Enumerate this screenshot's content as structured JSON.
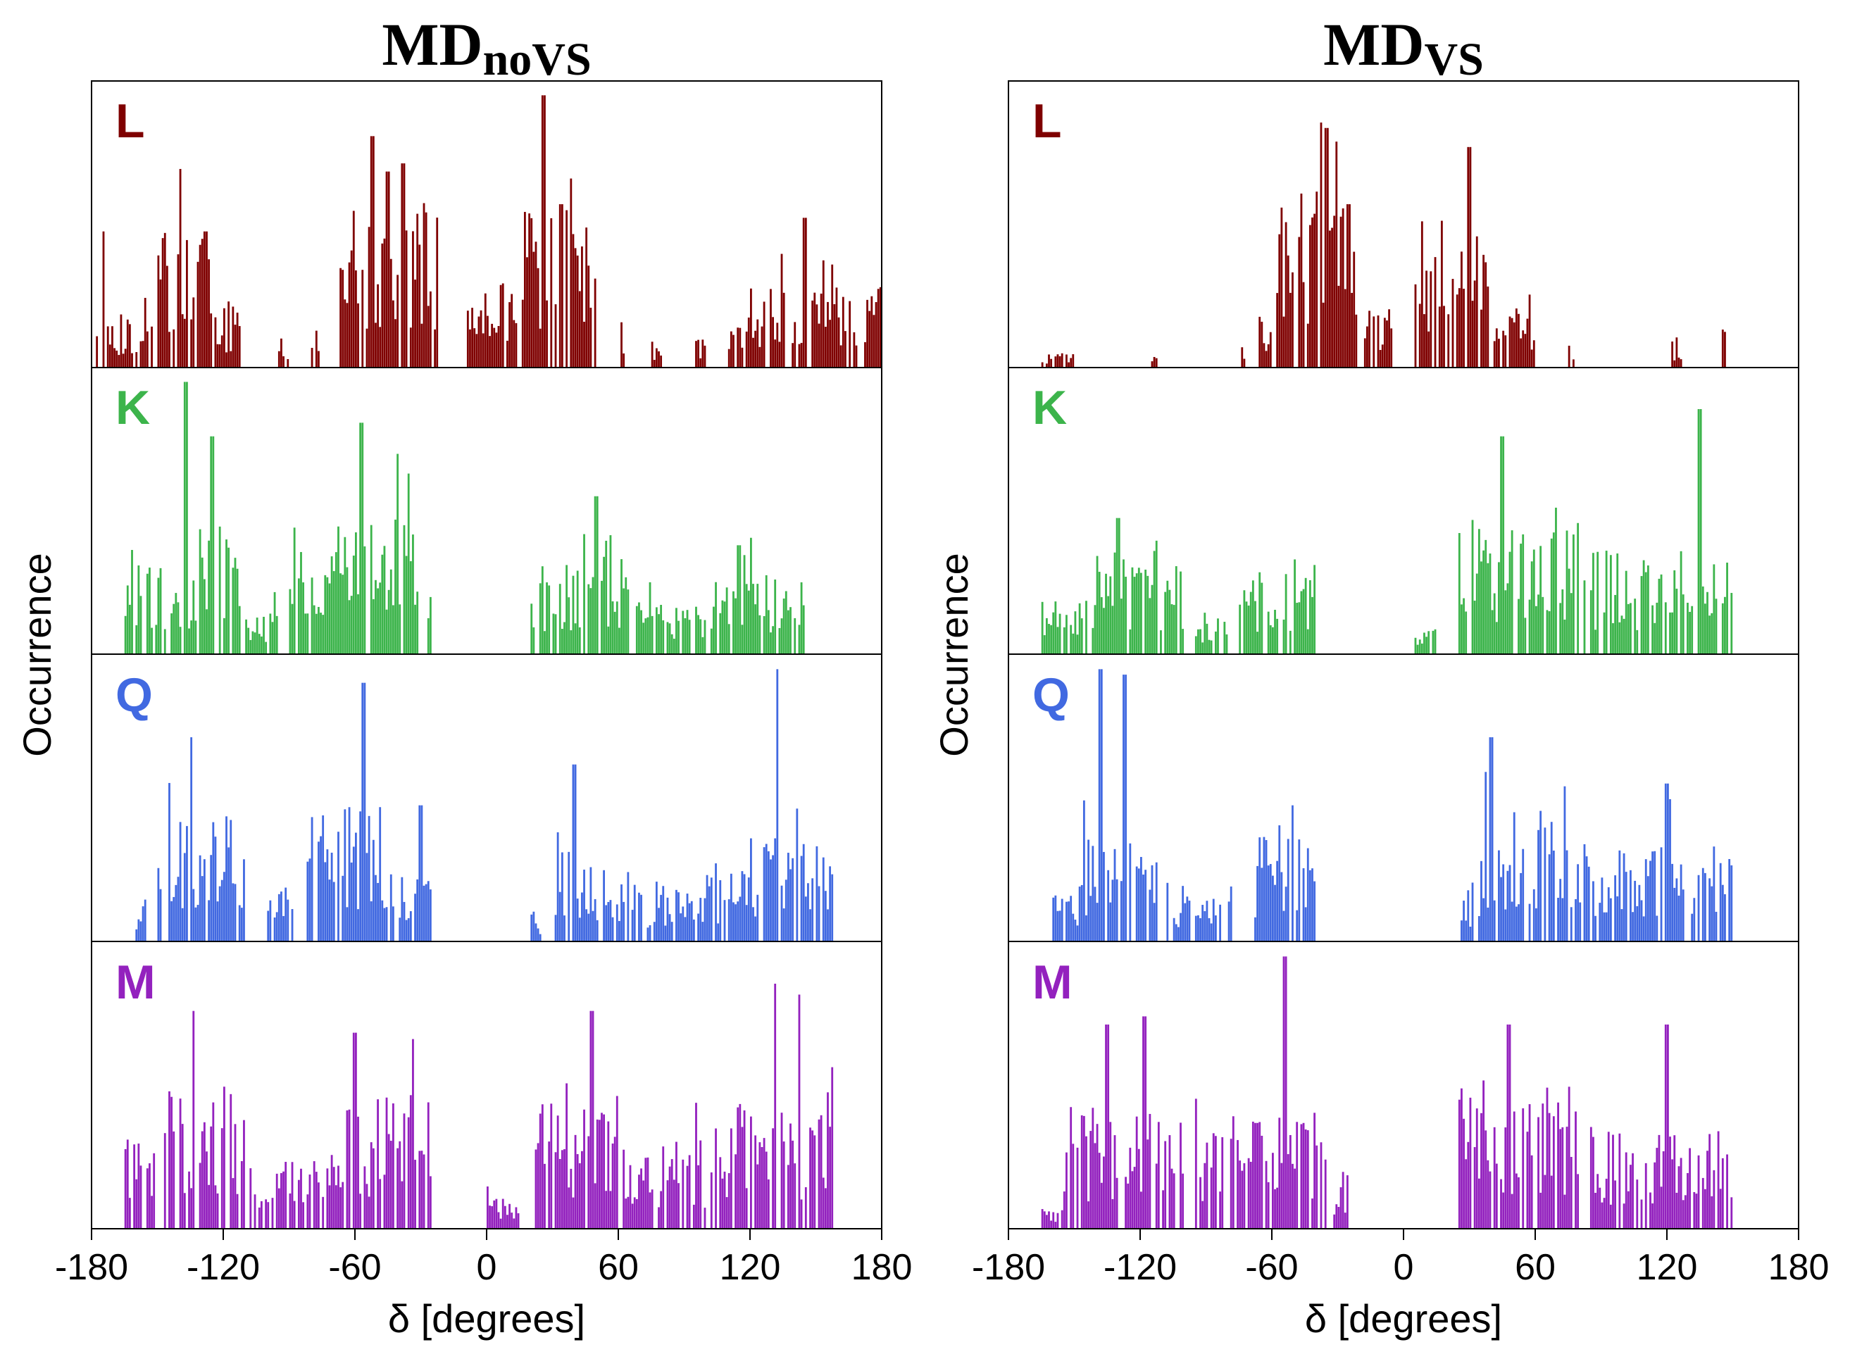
{
  "chart_data": [
    {
      "type": "bar",
      "title": "MD",
      "title_subscript": "noVS",
      "xlabel": "δ [degrees]",
      "ylabel": "Occurrence",
      "xlim": [
        -180,
        180
      ],
      "xticks": [
        "-180",
        "-120",
        "-60",
        "0",
        "60",
        "120",
        "180"
      ],
      "panels": [
        {
          "label": "L",
          "color": "#7f0000",
          "clusters": [
            [
              -178,
              -152,
              0.18
            ],
            [
              -150,
              -125,
              0.45
            ],
            [
              -124,
              -112,
              0.2
            ],
            [
              -95,
              -90,
              0.1
            ],
            [
              -80,
              -75,
              0.15
            ],
            [
              -68,
              -22,
              0.55
            ],
            [
              -10,
              15,
              0.3
            ],
            [
              16,
              50,
              0.55
            ],
            [
              60,
              63,
              0.15
            ],
            [
              75,
              80,
              0.1
            ],
            [
              95,
              100,
              0.1
            ],
            [
              110,
              120,
              0.15
            ],
            [
              120,
              180,
              0.3
            ]
          ],
          "peaks": [
            [
              26,
              1.0
            ],
            [
              -52,
              0.85
            ],
            [
              -45,
              0.72
            ],
            [
              -38,
              0.75
            ],
            [
              34,
              0.6
            ],
            [
              -128,
              0.5
            ],
            [
              145,
              0.55
            ],
            [
              -175,
              0.5
            ]
          ]
        },
        {
          "label": "K",
          "color": "#3cb44b",
          "clusters": [
            [
              -165,
              -132,
              0.3
            ],
            [
              -131,
              -112,
              0.45
            ],
            [
              -110,
              -95,
              0.15
            ],
            [
              -90,
              -30,
              0.45
            ],
            [
              -28,
              -25,
              0.2
            ],
            [
              20,
              65,
              0.3
            ],
            [
              68,
              100,
              0.2
            ],
            [
              102,
              145,
              0.28
            ]
          ],
          "peaks": [
            [
              -137,
              1.0
            ],
            [
              -125,
              0.8
            ],
            [
              -57,
              0.85
            ],
            [
              50,
              0.58
            ],
            [
              115,
              0.4
            ]
          ]
        },
        {
          "label": "Q",
          "color": "#4169e1",
          "clusters": [
            [
              -160,
              -155,
              0.15
            ],
            [
              -150,
              -110,
              0.45
            ],
            [
              -100,
              -88,
              0.2
            ],
            [
              -82,
              -45,
              0.45
            ],
            [
              -44,
              -25,
              0.25
            ],
            [
              20,
              25,
              0.1
            ],
            [
              30,
              65,
              0.3
            ],
            [
              66,
              95,
              0.2
            ],
            [
              96,
              125,
              0.25
            ],
            [
              126,
              158,
              0.35
            ]
          ],
          "peaks": [
            [
              -135,
              0.75
            ],
            [
              -56,
              0.95
            ],
            [
              133,
              1.0
            ],
            [
              40,
              0.65
            ],
            [
              -30,
              0.5
            ]
          ]
        },
        {
          "label": "M",
          "color": "#9321be",
          "clusters": [
            [
              -165,
              -150,
              0.3
            ],
            [
              -150,
              -110,
              0.5
            ],
            [
              -108,
              -65,
              0.25
            ],
            [
              -64,
              -25,
              0.45
            ],
            [
              0,
              15,
              0.1
            ],
            [
              22,
              60,
              0.42
            ],
            [
              62,
              100,
              0.3
            ],
            [
              102,
              160,
              0.4
            ]
          ],
          "peaks": [
            [
              -133,
              0.8
            ],
            [
              -60,
              0.72
            ],
            [
              48,
              0.8
            ],
            [
              132,
              0.9
            ],
            [
              142,
              0.86
            ]
          ]
        }
      ]
    },
    {
      "type": "bar",
      "title": "MD",
      "title_subscript": "VS",
      "xlabel": "δ [degrees]",
      "ylabel": "Occurrence",
      "xlim": [
        -180,
        180
      ],
      "xticks": [
        "-180",
        "-120",
        "-60",
        "0",
        "60",
        "120",
        "180"
      ],
      "panels": [
        {
          "label": "L",
          "color": "#7f0000",
          "clusters": [
            [
              -165,
              -150,
              0.05
            ],
            [
              -115,
              -112,
              0.05
            ],
            [
              -75,
              -72,
              0.07
            ],
            [
              -68,
              -60,
              0.18
            ],
            [
              -58,
              -20,
              0.6
            ],
            [
              -18,
              -5,
              0.2
            ],
            [
              5,
              40,
              0.5
            ],
            [
              41,
              60,
              0.2
            ],
            [
              75,
              78,
              0.1
            ],
            [
              122,
              127,
              0.08
            ],
            [
              145,
              147,
              0.15
            ]
          ],
          "peaks": [
            [
              -38,
              0.9
            ],
            [
              -35,
              0.88
            ],
            [
              30,
              0.81
            ],
            [
              -25,
              0.6
            ]
          ]
        },
        {
          "label": "K",
          "color": "#3cb44b",
          "clusters": [
            [
              -165,
              -140,
              0.18
            ],
            [
              -140,
              -100,
              0.35
            ],
            [
              -95,
              -80,
              0.15
            ],
            [
              -75,
              -40,
              0.3
            ],
            [
              5,
              15,
              0.1
            ],
            [
              25,
              80,
              0.45
            ],
            [
              81,
              150,
              0.35
            ]
          ],
          "peaks": [
            [
              45,
              0.8
            ],
            [
              135,
              0.9
            ],
            [
              -130,
              0.5
            ]
          ]
        },
        {
          "label": "Q",
          "color": "#4169e1",
          "clusters": [
            [
              -160,
              -148,
              0.18
            ],
            [
              -148,
              -110,
              0.35
            ],
            [
              -108,
              -78,
              0.2
            ],
            [
              -68,
              -40,
              0.35
            ],
            [
              25,
              35,
              0.2
            ],
            [
              35,
              85,
              0.4
            ],
            [
              86,
              150,
              0.32
            ]
          ],
          "peaks": [
            [
              -138,
              1.0
            ],
            [
              -127,
              0.98
            ],
            [
              -123,
              0.7
            ],
            [
              56,
              0.85
            ],
            [
              40,
              0.75
            ],
            [
              -50,
              0.5
            ],
            [
              120,
              0.58
            ]
          ]
        },
        {
          "label": "M",
          "color": "#9321be",
          "clusters": [
            [
              -165,
              -155,
              0.1
            ],
            [
              -155,
              -100,
              0.4
            ],
            [
              -95,
              -35,
              0.38
            ],
            [
              -32,
              -25,
              0.2
            ],
            [
              25,
              80,
              0.5
            ],
            [
              85,
              150,
              0.35
            ]
          ],
          "peaks": [
            [
              -54,
              1.0
            ],
            [
              48,
              0.75
            ],
            [
              120,
              0.75
            ],
            [
              -135,
              0.75
            ],
            [
              -118,
              0.78
            ]
          ]
        }
      ]
    }
  ]
}
